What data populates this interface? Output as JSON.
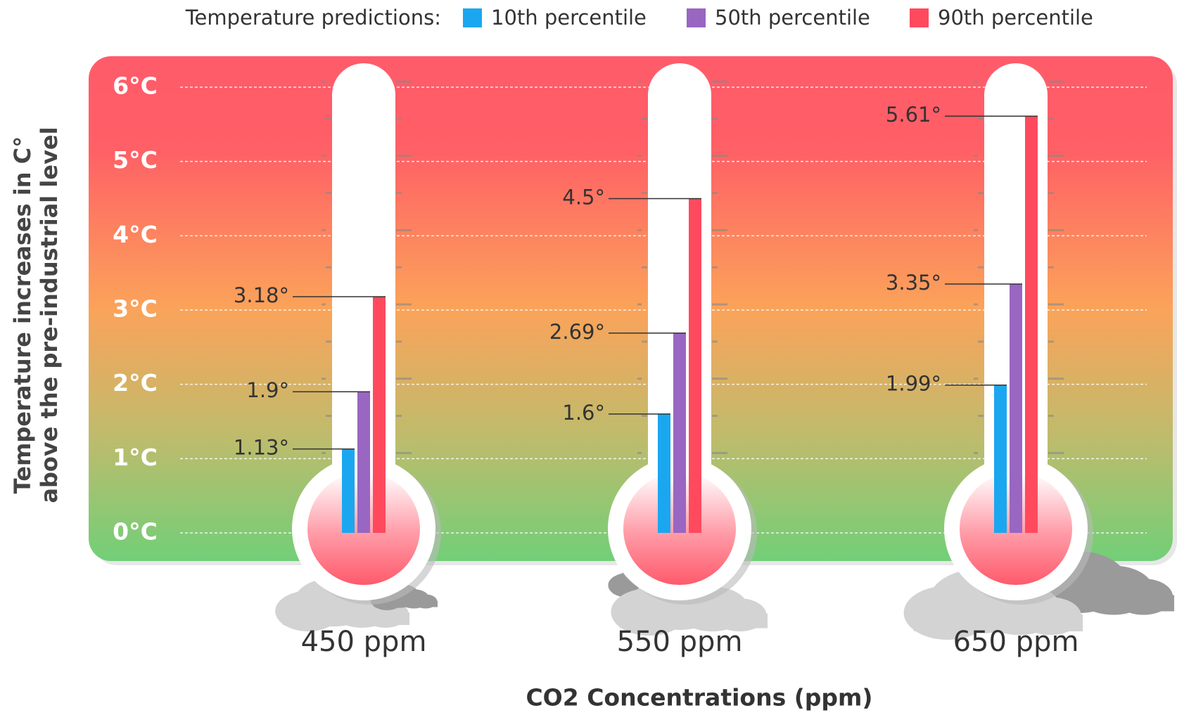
{
  "chart_data": {
    "type": "thermometer-bar",
    "legend_title": "Temperature predictions:",
    "ylabel": [
      "Temperature increases in C°",
      "above the pre-industrial level"
    ],
    "xlabel": "CO2 Concentrations (ppm)",
    "categories": [
      "450 ppm",
      "550 ppm",
      "650 ppm"
    ],
    "series": [
      {
        "name": "10th percentile",
        "color": "#1aa7f0",
        "values": [
          1.13,
          1.6,
          1.99
        ],
        "value_labels": [
          "1.13°",
          "1.6°",
          "1.99°"
        ]
      },
      {
        "name": "50th percentile",
        "color": "#9966c2",
        "values": [
          1.9,
          2.69,
          3.35
        ],
        "value_labels": [
          "1.9°",
          "2.69°",
          "3.35°"
        ]
      },
      {
        "name": "90th percentile",
        "color": "#ff4a5e",
        "values": [
          3.18,
          4.5,
          5.61
        ],
        "value_labels": [
          "3.18°",
          "4.5°",
          "5.61°"
        ]
      }
    ],
    "ylim": [
      0,
      6
    ],
    "yticks": [
      {
        "value": 0,
        "label": "0°C"
      },
      {
        "value": 1,
        "label": "1°C"
      },
      {
        "value": 2,
        "label": "2°C"
      },
      {
        "value": 3,
        "label": "3°C"
      },
      {
        "value": 4,
        "label": "4°C"
      },
      {
        "value": 5,
        "label": "5°C"
      },
      {
        "value": 6,
        "label": "6°C"
      }
    ],
    "grid": true
  }
}
